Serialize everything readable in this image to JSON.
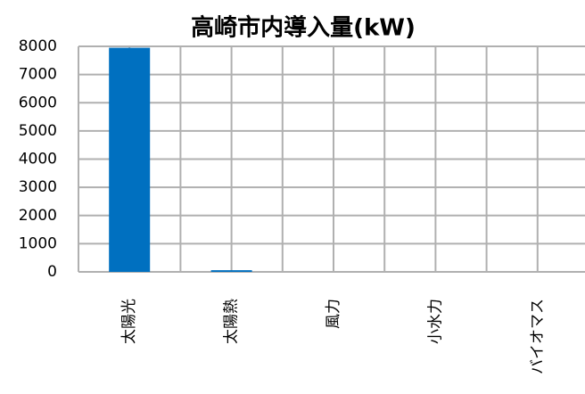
{
  "chart_data": {
    "type": "bar",
    "title": "高崎市内導入量(kW)",
    "categories": [
      "太陽光",
      "太陽熱",
      "風力",
      "小水力",
      "バイオマス"
    ],
    "values": [
      7950,
      60,
      0,
      0,
      0
    ],
    "color": "#0070c0",
    "ylim": [
      0,
      8000
    ],
    "yticks": [
      0,
      1000,
      2000,
      3000,
      4000,
      5000,
      6000,
      7000,
      8000
    ],
    "grid": true
  }
}
